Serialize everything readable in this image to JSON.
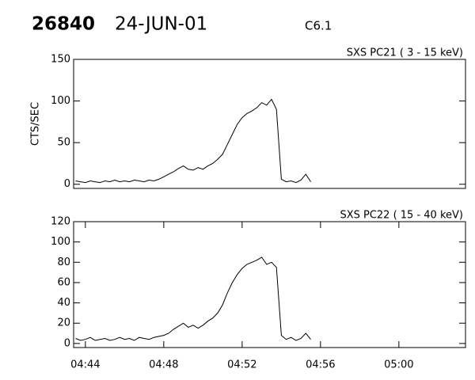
{
  "header": {
    "id": "26840",
    "date": "24-JUN-01",
    "class": "C6.1"
  },
  "chart_data": [
    {
      "type": "line",
      "title": "SXS PC21  (  3 - 15 keV)",
      "y_label": "CTS/SEC",
      "xlim": [
        283.4,
        303.4
      ],
      "ylim": [
        -5,
        150
      ],
      "yticks": [
        0,
        50,
        100,
        150
      ],
      "series": [
        {
          "color": "#000000",
          "x": [
            283.5,
            283.75,
            284,
            284.25,
            284.5,
            284.75,
            285,
            285.25,
            285.5,
            285.75,
            286,
            286.25,
            286.5,
            286.75,
            287,
            287.25,
            287.5,
            287.75,
            288,
            288.25,
            288.5,
            288.75,
            289,
            289.25,
            289.5,
            289.75,
            290,
            290.25,
            290.5,
            290.75,
            291,
            291.25,
            291.5,
            291.75,
            292,
            292.25,
            292.5,
            292.75,
            293,
            293.25,
            293.5,
            293.75,
            294,
            294.25,
            294.5,
            294.75,
            295,
            295.25,
            295.5
          ],
          "values": [
            4,
            3,
            2,
            4,
            3,
            2,
            4,
            3,
            5,
            3,
            4,
            3,
            5,
            4,
            3,
            5,
            4,
            6,
            9,
            12,
            15,
            19,
            22,
            18,
            17,
            20,
            18,
            22,
            25,
            30,
            36,
            48,
            60,
            72,
            80,
            85,
            88,
            92,
            98,
            95,
            102,
            90,
            6,
            3,
            4,
            2,
            5,
            12,
            3
          ]
        }
      ]
    },
    {
      "type": "line",
      "title": "SXS PC22  ( 15 - 40 keV)",
      "xlim": [
        283.4,
        303.4
      ],
      "ylim": [
        -4,
        120
      ],
      "yticks": [
        0,
        20,
        40,
        60,
        80,
        100,
        120
      ],
      "xticks": [
        {
          "value": 284,
          "label": "04:44"
        },
        {
          "value": 288,
          "label": "04:48"
        },
        {
          "value": 292,
          "label": "04:52"
        },
        {
          "value": 296,
          "label": "04:56"
        },
        {
          "value": 300,
          "label": "05:00"
        }
      ],
      "series": [
        {
          "color": "#000000",
          "x": [
            283.5,
            283.75,
            284,
            284.25,
            284.5,
            284.75,
            285,
            285.25,
            285.5,
            285.75,
            286,
            286.25,
            286.5,
            286.75,
            287,
            287.25,
            287.5,
            287.75,
            288,
            288.25,
            288.5,
            288.75,
            289,
            289.25,
            289.5,
            289.75,
            290,
            290.25,
            290.5,
            290.75,
            291,
            291.25,
            291.5,
            291.75,
            292,
            292.25,
            292.5,
            292.75,
            293,
            293.25,
            293.5,
            293.75,
            294,
            294.25,
            294.5,
            294.75,
            295,
            295.25,
            295.5
          ],
          "values": [
            5,
            3,
            4,
            6,
            3,
            4,
            5,
            3,
            4,
            6,
            4,
            5,
            3,
            6,
            5,
            4,
            6,
            7,
            8,
            10,
            14,
            17,
            20,
            16,
            18,
            15,
            18,
            22,
            25,
            30,
            38,
            50,
            60,
            68,
            74,
            78,
            80,
            82,
            85,
            78,
            80,
            75,
            8,
            4,
            6,
            3,
            5,
            10,
            4
          ]
        }
      ]
    }
  ]
}
